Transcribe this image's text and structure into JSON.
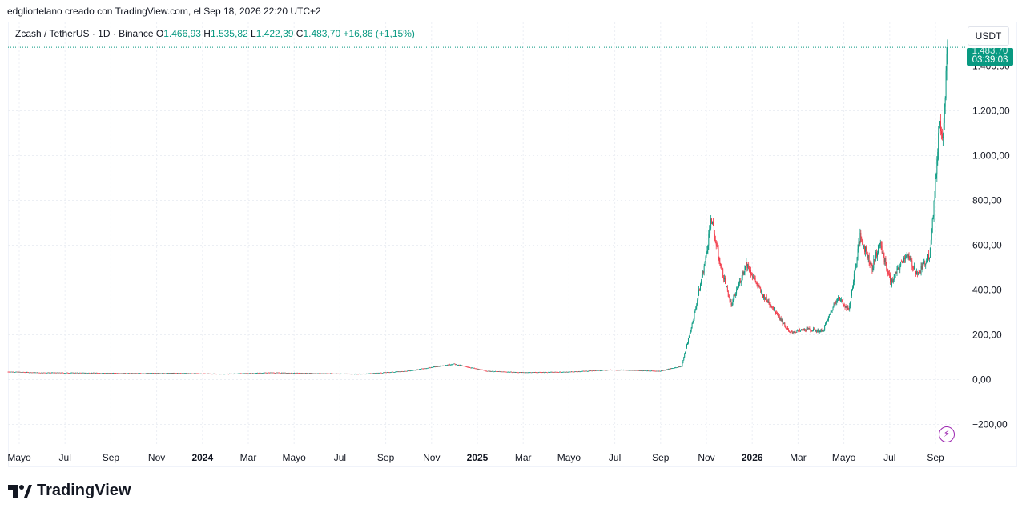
{
  "header": {
    "caption": "edgliortelano creado con TradingView.com, el Sep 18, 2026 22:20 UTC+2"
  },
  "legend": {
    "symbol": "Zcash / TetherUS · 1D · Binance",
    "open_label": "O",
    "open": "1.466,93",
    "high_label": "H",
    "high": "1.535,82",
    "low_label": "L",
    "low": "1.422,39",
    "close_label": "C",
    "close": "1.483,70",
    "change": "+16,86 (+1,15%)"
  },
  "price_scale": {
    "currency": "USDT",
    "last_price": "1.483,70",
    "countdown": "03:39:03"
  },
  "colors": {
    "up": "#089981",
    "down": "#f23645",
    "grid": "#eceff4",
    "accent": "#9c27b0"
  },
  "icons": {
    "flash": "flash-icon",
    "logo": "tradingview-logo-icon"
  },
  "brand": {
    "name": "TradingView"
  },
  "chart_data": {
    "type": "candlestick",
    "title": "Zcash / TetherUS · 1D · Binance",
    "y_ticks": [
      "1.400,00",
      "1.200,00",
      "1.000,00",
      "800,00",
      "600,00",
      "400,00",
      "200,00",
      "0,00",
      "−200,00"
    ],
    "y_tick_values": [
      1400,
      1200,
      1000,
      800,
      600,
      400,
      200,
      0,
      -200
    ],
    "ylim": [
      -200,
      1535.82
    ],
    "x_ticks": [
      "Mayo",
      "Jul",
      "Sep",
      "Nov",
      "2024",
      "Mar",
      "Mayo",
      "Jul",
      "Sep",
      "Nov",
      "2025",
      "Mar",
      "Mayo",
      "Jul",
      "Sep",
      "Nov",
      "2026",
      "Mar",
      "Mayo",
      "Jul",
      "Sep"
    ],
    "x_tick_bold": [
      false,
      false,
      false,
      false,
      true,
      false,
      false,
      false,
      false,
      false,
      true,
      false,
      false,
      false,
      false,
      false,
      true,
      false,
      false,
      false,
      false
    ],
    "x_range": [
      "2023-04-20",
      "2026-09-18"
    ],
    "grid": true,
    "price_path": [
      {
        "date": "2023-04-20",
        "close": 35
      },
      {
        "date": "2023-06-01",
        "close": 31
      },
      {
        "date": "2023-08-01",
        "close": 30
      },
      {
        "date": "2023-10-01",
        "close": 28
      },
      {
        "date": "2023-12-01",
        "close": 29
      },
      {
        "date": "2024-02-01",
        "close": 25
      },
      {
        "date": "2024-04-01",
        "close": 31
      },
      {
        "date": "2024-06-01",
        "close": 28
      },
      {
        "date": "2024-08-01",
        "close": 25
      },
      {
        "date": "2024-10-01",
        "close": 38
      },
      {
        "date": "2024-12-01",
        "close": 70
      },
      {
        "date": "2025-01-15",
        "close": 38
      },
      {
        "date": "2025-03-01",
        "close": 32
      },
      {
        "date": "2025-05-01",
        "close": 34
      },
      {
        "date": "2025-07-01",
        "close": 44
      },
      {
        "date": "2025-09-01",
        "close": 38
      },
      {
        "date": "2025-09-30",
        "close": 60
      },
      {
        "date": "2025-10-15",
        "close": 260
      },
      {
        "date": "2025-11-01",
        "close": 540
      },
      {
        "date": "2025-11-08",
        "close": 720
      },
      {
        "date": "2025-11-20",
        "close": 520
      },
      {
        "date": "2025-12-05",
        "close": 330
      },
      {
        "date": "2025-12-25",
        "close": 520
      },
      {
        "date": "2026-01-15",
        "close": 380
      },
      {
        "date": "2026-02-01",
        "close": 310
      },
      {
        "date": "2026-02-20",
        "close": 210
      },
      {
        "date": "2026-03-15",
        "close": 225
      },
      {
        "date": "2026-04-05",
        "close": 215
      },
      {
        "date": "2026-04-25",
        "close": 370
      },
      {
        "date": "2026-05-10",
        "close": 310
      },
      {
        "date": "2026-05-25",
        "close": 640
      },
      {
        "date": "2026-06-10",
        "close": 500
      },
      {
        "date": "2026-06-20",
        "close": 610
      },
      {
        "date": "2026-07-05",
        "close": 430
      },
      {
        "date": "2026-07-25",
        "close": 560
      },
      {
        "date": "2026-08-10",
        "close": 470
      },
      {
        "date": "2026-08-25",
        "close": 560
      },
      {
        "date": "2026-09-01",
        "close": 820
      },
      {
        "date": "2026-09-07",
        "close": 1150
      },
      {
        "date": "2026-09-12",
        "close": 1100
      },
      {
        "date": "2026-09-18",
        "close": 1483.7
      }
    ]
  }
}
